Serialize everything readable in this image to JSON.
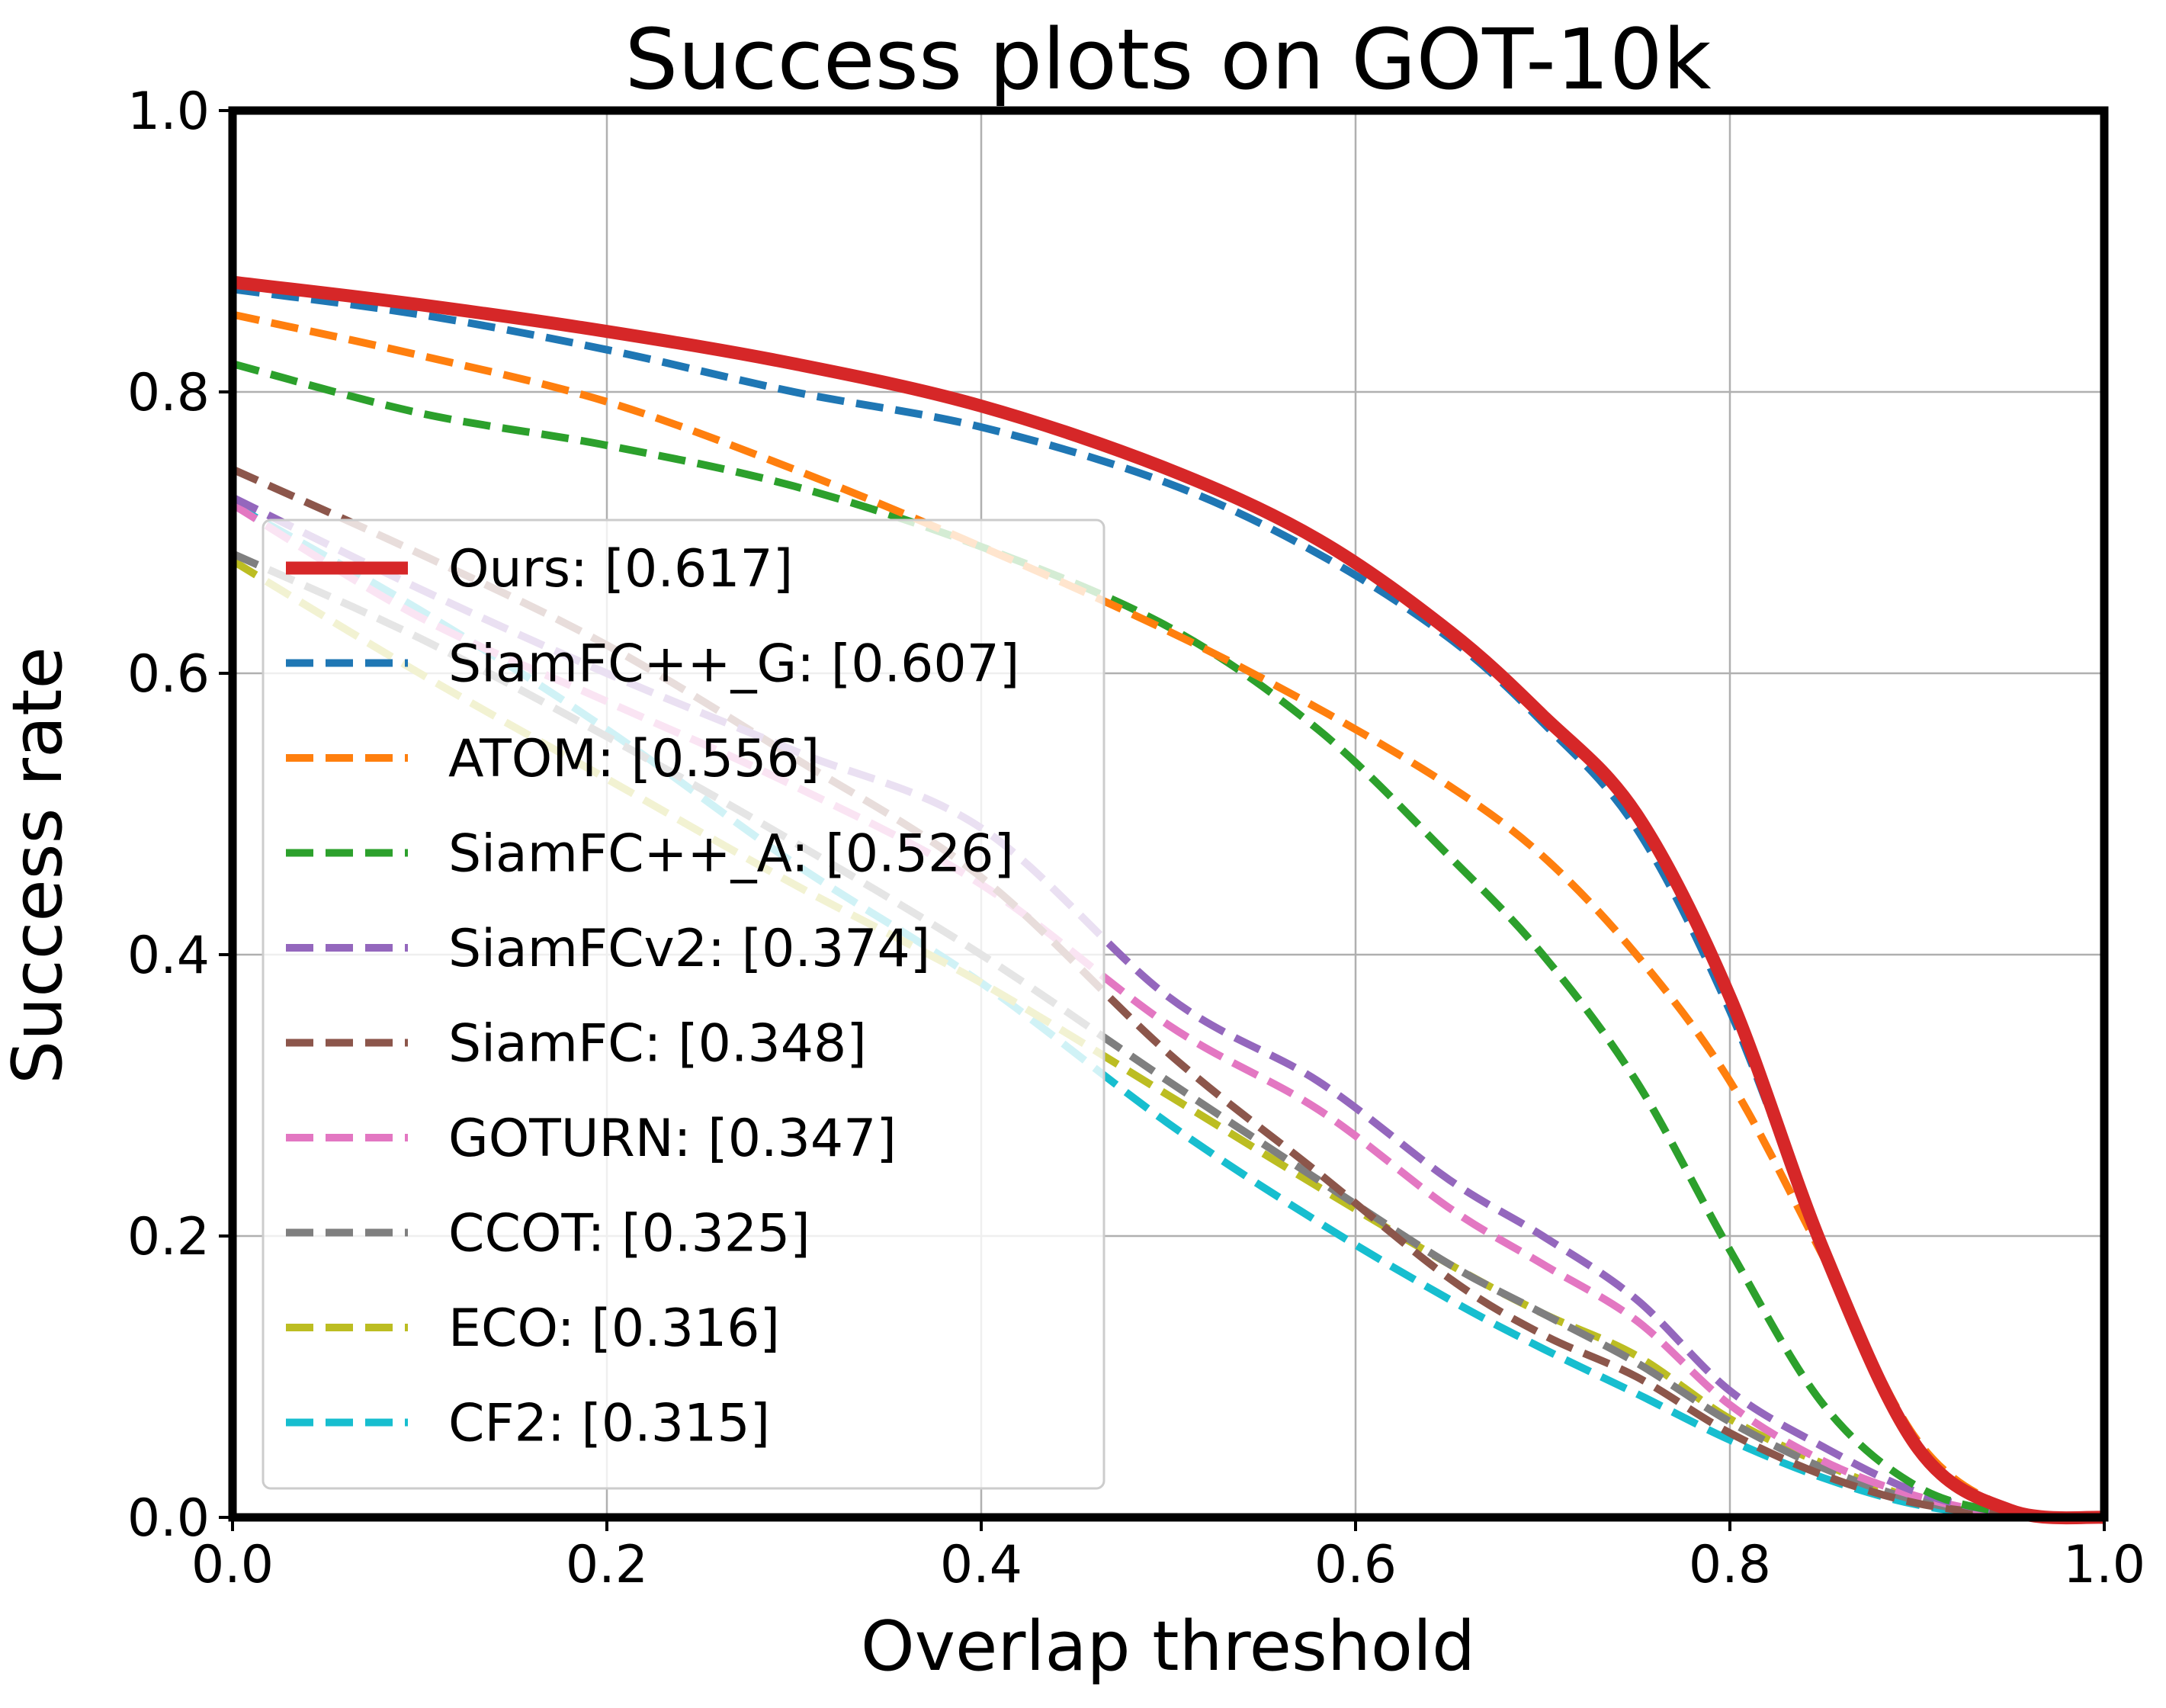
{
  "chart_data": {
    "type": "line",
    "title": "Success plots on GOT-10k",
    "xlabel": "Overlap threshold",
    "ylabel": "Success rate",
    "xlim": [
      0.0,
      1.0
    ],
    "ylim": [
      0.0,
      1.0
    ],
    "x_ticks": [
      "0.0",
      "0.2",
      "0.4",
      "0.6",
      "0.8",
      "1.0"
    ],
    "y_ticks": [
      "0.0",
      "0.2",
      "0.4",
      "0.6",
      "0.8",
      "1.0"
    ],
    "grid": true,
    "legend_position": "center-left",
    "x": [
      0.0,
      0.1,
      0.2,
      0.3,
      0.4,
      0.5,
      0.58,
      0.65,
      0.7,
      0.75,
      0.8,
      0.85,
      0.9,
      0.95,
      1.0
    ],
    "series": [
      {
        "name": "Ours: [0.617]",
        "color": "#d62728",
        "style": "solid",
        "values": [
          0.878,
          0.862,
          0.843,
          0.82,
          0.79,
          0.745,
          0.695,
          0.63,
          0.57,
          0.5,
          0.37,
          0.19,
          0.05,
          0.005,
          0.0
        ]
      },
      {
        "name": "SiamFC++_G: [0.607]",
        "color": "#1f77b4",
        "style": "dashed",
        "values": [
          0.873,
          0.855,
          0.83,
          0.8,
          0.775,
          0.735,
          0.685,
          0.625,
          0.565,
          0.49,
          0.36,
          0.19,
          0.05,
          0.005,
          0.0
        ]
      },
      {
        "name": "ATOM: [0.556]",
        "color": "#ff7f0e",
        "style": "dashed",
        "values": [
          0.855,
          0.826,
          0.793,
          0.745,
          0.69,
          0.63,
          0.575,
          0.52,
          0.47,
          0.4,
          0.31,
          0.185,
          0.055,
          0.006,
          0.0
        ]
      },
      {
        "name": "SiamFC++_A: [0.526]",
        "color": "#2ca02c",
        "style": "dashed",
        "values": [
          0.82,
          0.785,
          0.762,
          0.733,
          0.69,
          0.633,
          0.56,
          0.47,
          0.4,
          0.31,
          0.19,
          0.08,
          0.022,
          0.003,
          0.0
        ]
      },
      {
        "name": "SiamFCv2: [0.374]",
        "color": "#9467bd",
        "style": "dashed",
        "values": [
          0.725,
          0.66,
          0.6,
          0.545,
          0.49,
          0.37,
          0.31,
          0.24,
          0.2,
          0.155,
          0.09,
          0.05,
          0.018,
          0.003,
          0.0
        ]
      },
      {
        "name": "SiamFC: [0.348]",
        "color": "#8c564b",
        "style": "dashed",
        "values": [
          0.745,
          0.685,
          0.62,
          0.54,
          0.455,
          0.33,
          0.245,
          0.17,
          0.13,
          0.1,
          0.06,
          0.03,
          0.01,
          0.002,
          0.0
        ]
      },
      {
        "name": "GOTURN: [0.347]",
        "color": "#e377c2",
        "style": "dashed",
        "values": [
          0.72,
          0.64,
          0.58,
          0.52,
          0.45,
          0.35,
          0.29,
          0.22,
          0.18,
          0.14,
          0.08,
          0.04,
          0.015,
          0.002,
          0.0
        ]
      },
      {
        "name": "CCOT: [0.325]",
        "color": "#7f7f7f",
        "style": "dashed",
        "values": [
          0.685,
          0.625,
          0.555,
          0.48,
          0.4,
          0.31,
          0.24,
          0.18,
          0.145,
          0.11,
          0.068,
          0.035,
          0.012,
          0.002,
          0.0
        ]
      },
      {
        "name": "ECO: [0.316]",
        "color": "#bcbd22",
        "style": "dashed",
        "values": [
          0.68,
          0.6,
          0.525,
          0.45,
          0.38,
          0.3,
          0.235,
          0.18,
          0.145,
          0.115,
          0.07,
          0.038,
          0.013,
          0.002,
          0.0
        ]
      },
      {
        "name": "CF2: [0.315]",
        "color": "#17becf",
        "style": "dashed",
        "values": [
          0.72,
          0.645,
          0.56,
          0.465,
          0.38,
          0.28,
          0.21,
          0.155,
          0.12,
          0.088,
          0.055,
          0.028,
          0.009,
          0.001,
          0.0
        ]
      }
    ]
  }
}
